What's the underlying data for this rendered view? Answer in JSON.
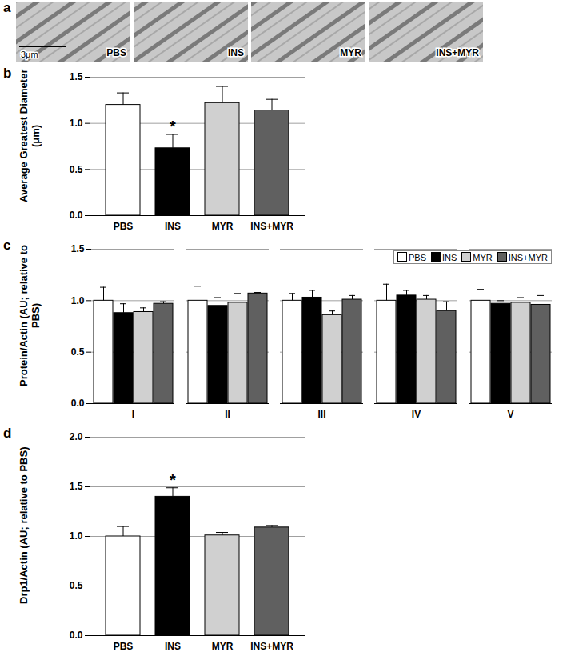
{
  "chart_data": [
    {
      "type": "image",
      "panel": "a",
      "labels": [
        "PBS",
        "INS",
        "MYR",
        "INS+MYR"
      ],
      "scale_bar": "3μm"
    },
    {
      "type": "bar",
      "panel": "b",
      "categories": [
        "PBS",
        "INS",
        "MYR",
        "INS+MYR"
      ],
      "values": [
        1.2,
        0.73,
        1.22,
        1.14
      ],
      "errors": [
        0.13,
        0.15,
        0.18,
        0.12
      ],
      "colors": [
        "#ffffff",
        "#000000",
        "#d0d0d0",
        "#606060"
      ],
      "ylabel": "Average Greatest Diameter (μm)",
      "ylim": [
        0,
        1.5
      ],
      "yticks": [
        {
          "value": 0,
          "label": "0.0"
        },
        {
          "value": 0.5,
          "label": "0.5"
        },
        {
          "value": 1,
          "label": "1.0"
        },
        {
          "value": 1.5,
          "label": "1.5"
        }
      ],
      "grid": true,
      "annotations": [
        {
          "category": "INS",
          "text": "*"
        }
      ]
    },
    {
      "type": "bar",
      "panel": "c",
      "categories": [
        "I",
        "II",
        "III",
        "IV",
        "V"
      ],
      "series": [
        {
          "name": "PBS",
          "color": "#ffffff",
          "values": [
            1.0,
            1.0,
            1.0,
            1.0,
            1.0
          ],
          "errors": [
            0.13,
            0.14,
            0.07,
            0.16,
            0.11
          ]
        },
        {
          "name": "INS",
          "color": "#000000",
          "values": [
            0.88,
            0.95,
            1.03,
            1.05,
            0.97
          ],
          "errors": [
            0.09,
            0.08,
            0.07,
            0.05,
            0.03
          ]
        },
        {
          "name": "MYR",
          "color": "#d0d0d0",
          "values": [
            0.89,
            0.98,
            0.86,
            1.01,
            0.98
          ],
          "errors": [
            0.04,
            0.09,
            0.04,
            0.04,
            0.05
          ]
        },
        {
          "name": "INS+MYR",
          "color": "#606060",
          "values": [
            0.97,
            1.07,
            1.01,
            0.9,
            0.96
          ],
          "errors": [
            0.02,
            0.01,
            0.04,
            0.09,
            0.09
          ]
        }
      ],
      "ylabel": "Protein/Actin (AU; relative to PBS)",
      "ylim": [
        0,
        1.5
      ],
      "yticks": [
        {
          "value": 0,
          "label": "0.0"
        },
        {
          "value": 0.5,
          "label": "0.5"
        },
        {
          "value": 1,
          "label": "1.0"
        },
        {
          "value": 1.5,
          "label": "1.5"
        }
      ],
      "grid": true,
      "legend": "top-right"
    },
    {
      "type": "bar",
      "panel": "d",
      "categories": [
        "PBS",
        "INS",
        "MYR",
        "INS+MYR"
      ],
      "values": [
        1.0,
        1.4,
        1.01,
        1.09
      ],
      "errors": [
        0.1,
        0.09,
        0.03,
        0.02
      ],
      "colors": [
        "#ffffff",
        "#000000",
        "#d0d0d0",
        "#606060"
      ],
      "ylabel": "Drp1/Actin (AU; relative to PBS)",
      "ylim": [
        0,
        2
      ],
      "yticks": [
        {
          "value": 0,
          "label": "0.0"
        },
        {
          "value": 0.5,
          "label": "0.5"
        },
        {
          "value": 1,
          "label": "1.0"
        },
        {
          "value": 1.5,
          "label": "1.5"
        },
        {
          "value": 2,
          "label": "2.0"
        }
      ],
      "grid": true,
      "annotations": [
        {
          "category": "INS",
          "text": "*"
        }
      ]
    }
  ]
}
